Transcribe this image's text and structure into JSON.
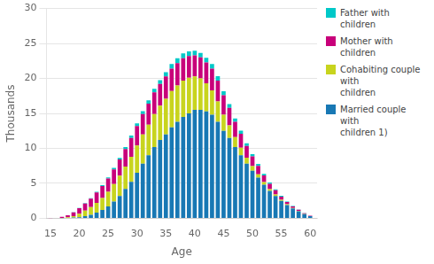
{
  "chart_data": {
    "type": "bar",
    "stacked": true,
    "x": [
      15,
      16,
      17,
      18,
      19,
      20,
      21,
      22,
      23,
      24,
      25,
      26,
      27,
      28,
      29,
      30,
      31,
      32,
      33,
      34,
      35,
      36,
      37,
      38,
      39,
      40,
      41,
      42,
      43,
      44,
      45,
      46,
      47,
      48,
      49,
      50,
      51,
      52,
      53,
      54,
      55,
      56,
      57,
      58,
      59,
      60
    ],
    "series": [
      {
        "name": "Married couple with\nchildren 1)",
        "color": "#1878b4",
        "values": [
          0.0,
          0.0,
          0.02,
          0.05,
          0.1,
          0.15,
          0.3,
          0.5,
          0.8,
          1.2,
          1.7,
          2.4,
          3.2,
          4.2,
          5.2,
          6.5,
          7.8,
          9.0,
          10.2,
          11.2,
          12.0,
          13.0,
          13.8,
          14.5,
          15.0,
          15.5,
          15.5,
          15.3,
          14.8,
          13.8,
          12.5,
          11.5,
          10.2,
          9.0,
          7.8,
          6.8,
          5.8,
          4.8,
          3.9,
          3.2,
          2.5,
          1.9,
          1.4,
          1.0,
          0.6,
          0.3
        ]
      },
      {
        "name": "Cohabiting couple with\nchildren",
        "color": "#c8d41e",
        "values": [
          0.0,
          0.0,
          0.03,
          0.08,
          0.2,
          0.5,
          0.8,
          1.1,
          1.4,
          1.7,
          2.1,
          2.5,
          2.9,
          3.2,
          3.6,
          3.9,
          4.2,
          4.4,
          4.7,
          4.9,
          5.1,
          5.2,
          5.2,
          5.2,
          5.1,
          4.8,
          4.5,
          4.0,
          3.5,
          2.9,
          2.3,
          1.8,
          1.4,
          1.1,
          0.85,
          0.65,
          0.5,
          0.38,
          0.28,
          0.2,
          0.15,
          0.1,
          0.07,
          0.05,
          0.03,
          0.01
        ]
      },
      {
        "name": "Mother with children",
        "color": "#c8007a",
        "values": [
          0.02,
          0.05,
          0.15,
          0.3,
          0.55,
          0.8,
          1.0,
          1.2,
          1.5,
          1.7,
          1.9,
          2.1,
          2.3,
          2.5,
          2.7,
          2.8,
          2.9,
          3.0,
          3.1,
          3.1,
          3.2,
          3.2,
          3.2,
          3.2,
          3.1,
          3.0,
          3.0,
          3.0,
          3.1,
          3.0,
          2.8,
          2.5,
          2.2,
          2.0,
          1.7,
          1.4,
          1.2,
          0.95,
          0.75,
          0.6,
          0.45,
          0.33,
          0.24,
          0.16,
          0.1,
          0.05
        ]
      },
      {
        "name": "Father with children",
        "color": "#00c8c8",
        "values": [
          0.0,
          0.0,
          0.0,
          0.01,
          0.02,
          0.04,
          0.06,
          0.08,
          0.1,
          0.13,
          0.16,
          0.2,
          0.24,
          0.28,
          0.32,
          0.36,
          0.42,
          0.48,
          0.52,
          0.56,
          0.6,
          0.65,
          0.68,
          0.68,
          0.68,
          0.67,
          0.66,
          0.65,
          0.65,
          0.62,
          0.58,
          0.52,
          0.48,
          0.43,
          0.38,
          0.33,
          0.28,
          0.23,
          0.18,
          0.14,
          0.11,
          0.08,
          0.06,
          0.04,
          0.025,
          0.01
        ]
      }
    ],
    "xlabel": "Age",
    "ylabel": "Thousands",
    "xlim": [
      14.3,
      61.2
    ],
    "xticks": [
      15,
      20,
      25,
      30,
      35,
      40,
      45,
      50,
      55,
      60
    ],
    "ylim": [
      0,
      30
    ],
    "yticks": [
      0,
      5,
      10,
      15,
      20,
      25,
      30
    ],
    "grid": "y",
    "legend": "upper right"
  }
}
